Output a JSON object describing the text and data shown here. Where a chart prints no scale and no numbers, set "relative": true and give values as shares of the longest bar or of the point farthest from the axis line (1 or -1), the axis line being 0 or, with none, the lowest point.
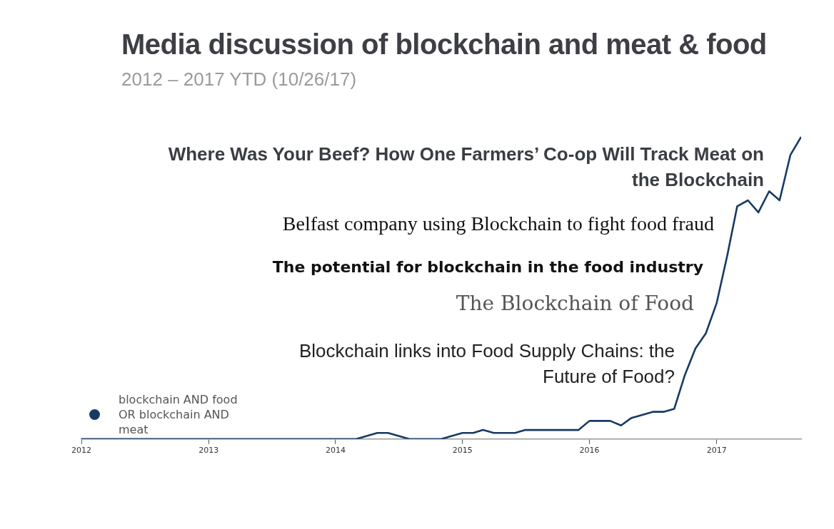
{
  "chart_data": {
    "type": "line",
    "title": "Media discussion of blockchain and meat & food",
    "subtitle": "2012 – 2017 YTD (10/26/17)",
    "relative": true,
    "grid": false,
    "marker": "none",
    "legend": "bottom left",
    "xlim": [
      "2012-01",
      "2017-09"
    ],
    "xticks": [
      "2012",
      "2013",
      "2014",
      "2015",
      "2016",
      "2017"
    ],
    "annotations": [
      "Where Was Your Beef? How One Farmers’ Co-op Will Track Meat on the Blockchain",
      "Belfast company using Blockchain to fight food fraud",
      "The potential for blockchain in the food industry",
      "The Blockchain of Food",
      "Blockchain links into Food Supply Chains: the Future of Food?"
    ],
    "series": [
      {
        "name": "blockchain AND food OR blockchain AND meat",
        "color": "#173a64",
        "x": [
          "2012-01",
          "2014-03",
          "2014-05",
          "2014-06",
          "2014-08",
          "2014-11",
          "2014-12",
          "2015-01",
          "2015-02",
          "2015-03",
          "2015-04",
          "2015-06",
          "2015-07",
          "2015-12",
          "2016-01",
          "2016-03",
          "2016-04",
          "2016-05",
          "2016-06",
          "2016-07",
          "2016-08",
          "2016-09",
          "2016-10",
          "2016-11",
          "2016-12",
          "2017-01",
          "2017-02",
          "2017-03",
          "2017-04",
          "2017-05",
          "2017-06",
          "2017-07",
          "2017-08",
          "2017-09"
        ],
        "values": [
          0,
          0,
          0.02,
          0.02,
          0,
          0,
          0.01,
          0.02,
          0.02,
          0.03,
          0.02,
          0.02,
          0.03,
          0.03,
          0.06,
          0.06,
          0.045,
          0.07,
          0.08,
          0.09,
          0.09,
          0.1,
          0.21,
          0.3,
          0.35,
          0.45,
          0.61,
          0.77,
          0.79,
          0.75,
          0.82,
          0.79,
          0.94,
          1
        ]
      }
    ]
  }
}
